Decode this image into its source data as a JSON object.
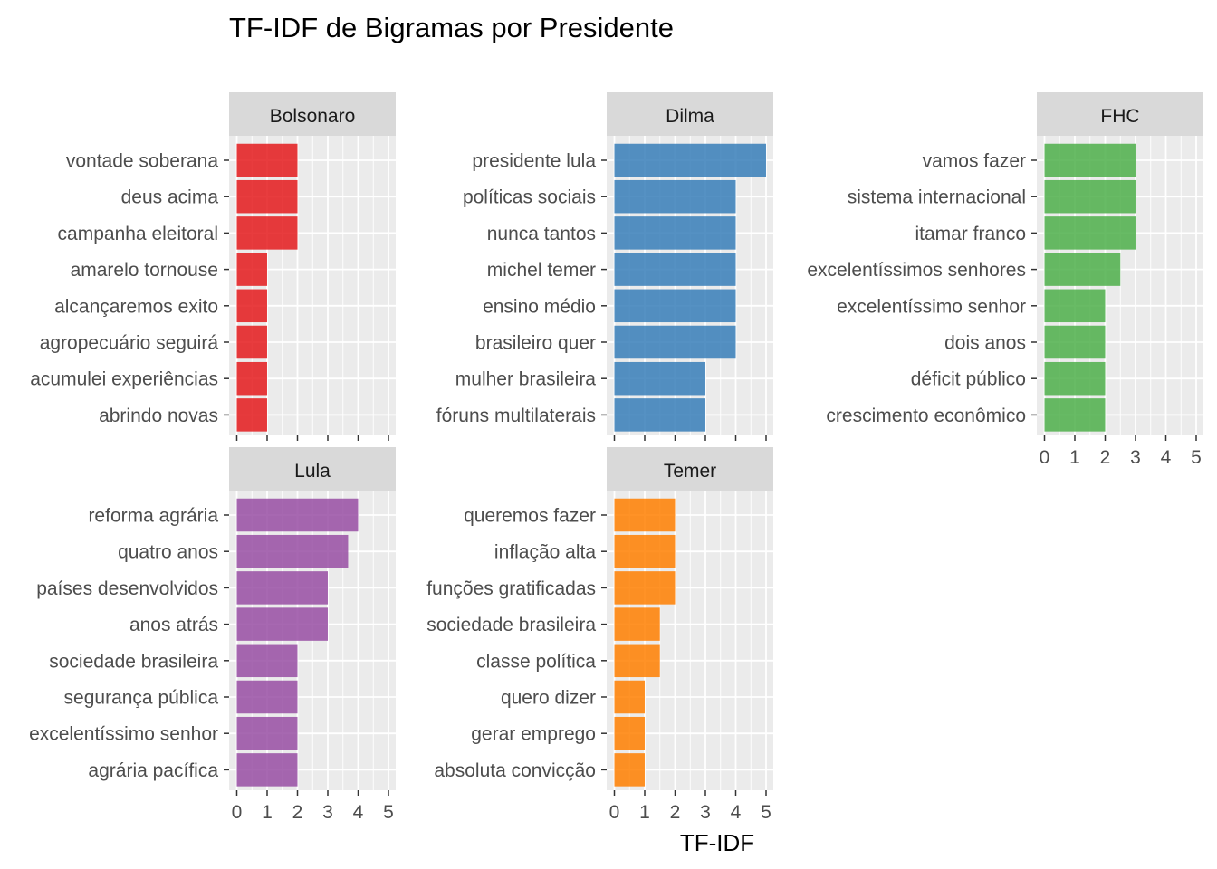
{
  "chart_data": {
    "type": "bar",
    "orientation": "horizontal",
    "title": "TF-IDF de Bigramas por Presidente",
    "xlabel": "TF-IDF",
    "ylabel": "",
    "xlim": [
      0,
      5
    ],
    "xticks": [
      "0",
      "1",
      "2",
      "3",
      "4",
      "5"
    ],
    "grid": true,
    "legend": "none",
    "facets": [
      {
        "name": "Bolsonaro",
        "color": "#E41A1C",
        "categories": [
          "vontade soberana",
          "deus acima",
          "campanha eleitoral",
          "amarelo tornouse",
          "alcançaremos exito",
          "agropecuário seguirá",
          "acumulei experiências",
          "abrindo novas"
        ],
        "values": [
          2,
          2,
          2,
          1,
          1,
          1,
          1,
          1
        ]
      },
      {
        "name": "Dilma",
        "color": "#377EB8",
        "categories": [
          "presidente lula",
          "políticas sociais",
          "nunca tantos",
          "michel temer",
          "ensino médio",
          "brasileiro quer",
          "mulher brasileira",
          "fóruns multilaterais"
        ],
        "values": [
          5,
          4,
          4,
          4,
          4,
          4,
          3,
          3
        ]
      },
      {
        "name": "FHC",
        "color": "#4DAF4A",
        "categories": [
          "vamos fazer",
          "sistema internacional",
          "itamar franco",
          "excelentíssimos senhores",
          "excelentíssimo senhor",
          "dois anos",
          "déficit público",
          "crescimento econômico"
        ],
        "values": [
          3,
          3,
          3,
          2.5,
          2,
          2,
          2,
          2
        ]
      },
      {
        "name": "Lula",
        "color": "#984EA3",
        "categories": [
          "reforma agrária",
          "quatro anos",
          "países desenvolvidos",
          "anos atrás",
          "sociedade brasileira",
          "segurança pública",
          "excelentíssimo senhor",
          "agrária pacífica"
        ],
        "values": [
          4,
          3.67,
          3,
          3,
          2,
          2,
          2,
          2
        ]
      },
      {
        "name": "Temer",
        "color": "#FF7F00",
        "categories": [
          "queremos fazer",
          "inflação alta",
          "funções gratificadas",
          "sociedade brasileira",
          "classe política",
          "quero dizer",
          "gerar emprego",
          "absoluta convicção"
        ],
        "values": [
          2,
          2,
          2,
          1.5,
          1.5,
          1,
          1,
          1
        ]
      }
    ]
  }
}
